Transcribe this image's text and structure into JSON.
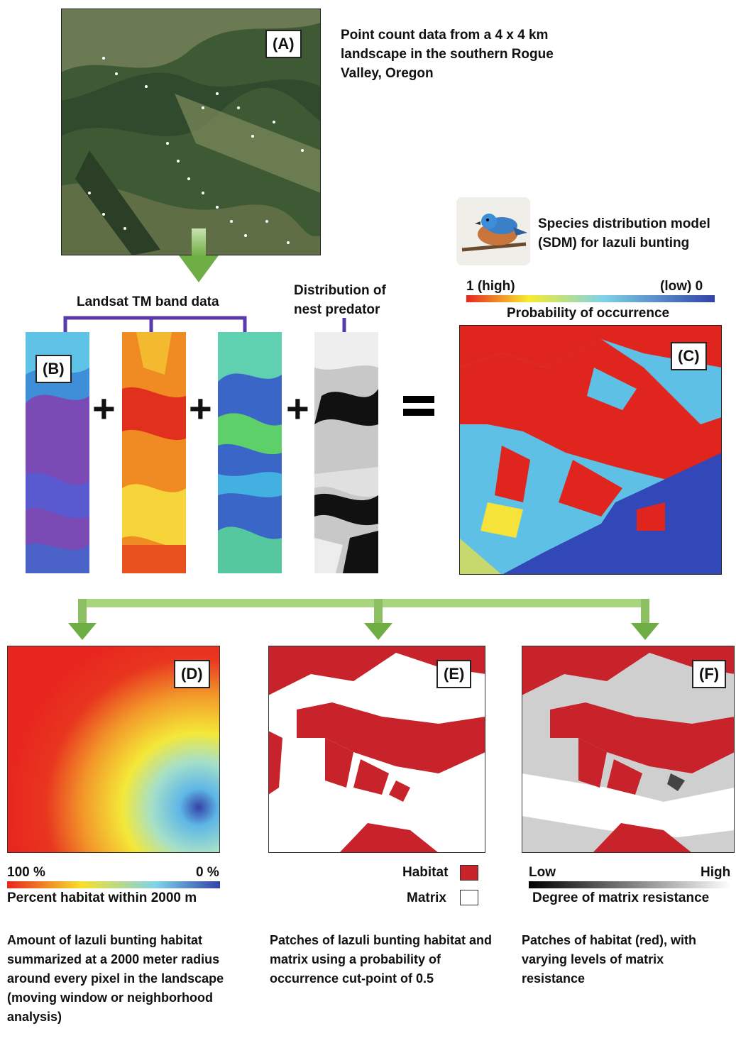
{
  "panel_a": {
    "label": "(A)",
    "description": "Point count data from a 4 x 4 km landscape in the southern Rogue Valley, Oregon"
  },
  "sdm": {
    "title": "Species distribution model (SDM) for lazuli bunting",
    "scale_high": "1 (high)",
    "scale_low": "(low) 0",
    "scale_title": "Probability of occurrence",
    "label": "(C)"
  },
  "inputs": {
    "landsat_title": "Landsat TM band data",
    "predator_title": "Distribution of nest predator",
    "label": "(B)"
  },
  "panel_d": {
    "label": "(D)",
    "scale_high": "100 %",
    "scale_low": "0 %",
    "scale_title": "Percent habitat within 2000 m",
    "caption": "Amount of lazuli bunting habitat summarized at a 2000 meter radius around every pixel in the landscape (moving window or neighborhood analysis)"
  },
  "panel_e": {
    "label": "(E)",
    "legend_habitat": "Habitat",
    "legend_matrix": "Matrix",
    "caption": "Patches of lazuli bunting habitat and matrix using a probability of occurrence cut-point of 0.5"
  },
  "panel_f": {
    "label": "(F)",
    "scale_low": "Low",
    "scale_high": "High",
    "scale_title": "Degree of matrix resistance",
    "caption": "Patches of habitat (red), with varying levels of matrix resistance"
  },
  "colors": {
    "habitat_red": "#d42a24",
    "arrow_green": "#8cc063",
    "bracket_purple": "#5a3aa8",
    "low_blue": "#3d4fb0"
  }
}
